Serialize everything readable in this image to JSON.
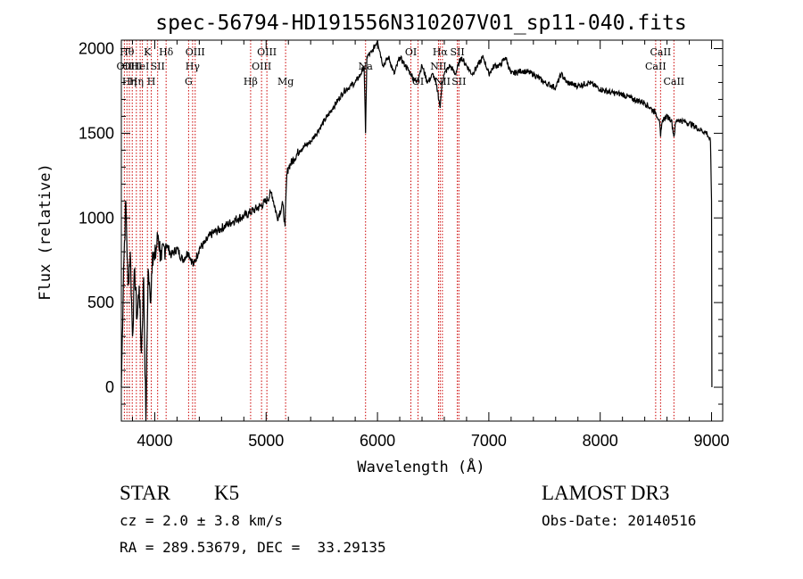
{
  "chart_data": {
    "type": "line",
    "title": "spec-56794-HD191556N310207V01_sp11-040.fits",
    "xlabel": "Wavelength (Å)",
    "ylabel": "Flux (relative)",
    "xlim": [
      3700,
      9100
    ],
    "ylim": [
      -200,
      2050
    ],
    "xticks": [
      4000,
      5000,
      6000,
      7000,
      8000,
      9000
    ],
    "yticks": [
      0,
      500,
      1000,
      1500,
      2000
    ],
    "series": [
      {
        "name": "flux",
        "x": [
          3700,
          3720,
          3740,
          3760,
          3780,
          3800,
          3820,
          3840,
          3860,
          3880,
          3900,
          3920,
          3940,
          3960,
          3980,
          4000,
          4030,
          4060,
          4100,
          4150,
          4200,
          4250,
          4300,
          4350,
          4400,
          4450,
          4500,
          4550,
          4600,
          4650,
          4700,
          4750,
          4800,
          4850,
          4900,
          4950,
          5000,
          5050,
          5100,
          5150,
          5170,
          5185,
          5200,
          5250,
          5300,
          5400,
          5500,
          5600,
          5700,
          5800,
          5850,
          5880,
          5893,
          5905,
          5950,
          6000,
          6050,
          6100,
          6150,
          6200,
          6250,
          6300,
          6350,
          6400,
          6450,
          6500,
          6540,
          6563,
          6580,
          6600,
          6650,
          6700,
          6750,
          6800,
          6850,
          6900,
          6950,
          7000,
          7050,
          7100,
          7150,
          7200,
          7300,
          7400,
          7500,
          7600,
          7650,
          7700,
          7800,
          7900,
          8000,
          8100,
          8200,
          8300,
          8400,
          8450,
          8500,
          8530,
          8542,
          8560,
          8600,
          8640,
          8662,
          8680,
          8700,
          8800,
          8900,
          8960,
          8990,
          9000,
          9003
        ],
        "values": [
          0,
          700,
          1100,
          600,
          800,
          300,
          700,
          400,
          600,
          200,
          650,
          -200,
          700,
          500,
          800,
          750,
          900,
          750,
          850,
          780,
          820,
          750,
          800,
          720,
          820,
          850,
          900,
          920,
          940,
          960,
          980,
          1000,
          1010,
          1030,
          1050,
          1070,
          1100,
          1150,
          1000,
          1080,
          950,
          1250,
          1300,
          1350,
          1400,
          1450,
          1550,
          1650,
          1750,
          1800,
          1850,
          1900,
          1500,
          1950,
          1980,
          2050,
          1900,
          1950,
          1850,
          1950,
          1900,
          1850,
          1800,
          1900,
          1800,
          1850,
          1750,
          1650,
          1800,
          1850,
          1900,
          1850,
          1950,
          1900,
          1850,
          1900,
          1950,
          1850,
          1900,
          1900,
          1950,
          1850,
          1870,
          1850,
          1800,
          1770,
          1850,
          1800,
          1780,
          1800,
          1760,
          1740,
          1730,
          1700,
          1680,
          1650,
          1620,
          1580,
          1480,
          1580,
          1600,
          1580,
          1480,
          1570,
          1580,
          1560,
          1520,
          1500,
          1450,
          1100,
          0
        ]
      }
    ],
    "lines": [
      {
        "wave": 3727,
        "label": "OII",
        "row": 2
      },
      {
        "wave": 3750,
        "label": "Hθ",
        "row": 1
      },
      {
        "wave": 3772,
        "label": "Hη",
        "row": 3
      },
      {
        "wave": 3798,
        "label": "OIII",
        "row": 2
      },
      {
        "wave": 3835,
        "label": "Hη",
        "row": 3
      },
      {
        "wave": 3869,
        "label": "HeI",
        "row": 2
      },
      {
        "wave": 3889,
        "label": "",
        "row": 0
      },
      {
        "wave": 3934,
        "label": "K",
        "row": 1
      },
      {
        "wave": 3969,
        "label": "H",
        "row": 3
      },
      {
        "wave": 4026,
        "label": "SII",
        "row": 2
      },
      {
        "wave": 4102,
        "label": "Hδ",
        "row": 1
      },
      {
        "wave": 4304,
        "label": "G",
        "row": 3
      },
      {
        "wave": 4340,
        "label": "Hγ",
        "row": 2
      },
      {
        "wave": 4363,
        "label": "OIII",
        "row": 1
      },
      {
        "wave": 4861,
        "label": "Hβ",
        "row": 3
      },
      {
        "wave": 4959,
        "label": "OIII",
        "row": 2
      },
      {
        "wave": 5007,
        "label": "OIII",
        "row": 1
      },
      {
        "wave": 5175,
        "label": "Mg",
        "row": 3
      },
      {
        "wave": 5893,
        "label": "Na",
        "row": 2
      },
      {
        "wave": 6300,
        "label": "OI",
        "row": 1
      },
      {
        "wave": 6364,
        "label": "OI",
        "row": 3
      },
      {
        "wave": 6548,
        "label": "NII",
        "row": 2
      },
      {
        "wave": 6563,
        "label": "Hα",
        "row": 1
      },
      {
        "wave": 6583,
        "label": "NII",
        "row": 3
      },
      {
        "wave": 6717,
        "label": "SII",
        "row": 1
      },
      {
        "wave": 6731,
        "label": "SII",
        "row": 3
      },
      {
        "wave": 8498,
        "label": "CaII",
        "row": 2
      },
      {
        "wave": 8542,
        "label": "CaII",
        "row": 1
      },
      {
        "wave": 8662,
        "label": "CaII",
        "row": 3
      }
    ]
  },
  "info": {
    "class_type": "STAR",
    "subclass": "K5",
    "survey": "LAMOST DR3",
    "cz": "cz = 2.0 ± 3.8 km/s",
    "obs_date": "Obs-Date: 20140516",
    "coords": "RA = 289.53679, DEC =  33.29135"
  }
}
